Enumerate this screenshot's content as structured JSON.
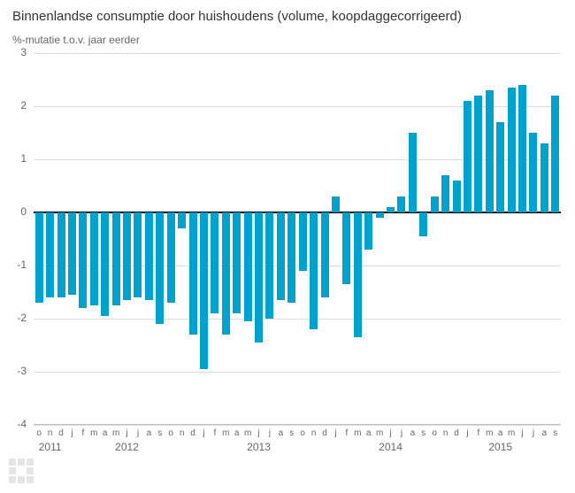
{
  "chart": {
    "type": "bar",
    "title": "Binnenlandse consumptie door huishoudens (volume, koopdaggecorrigeerd)",
    "subtitle": "%-mutatie t.o.v. jaar eerder",
    "title_fontsize": 15,
    "subtitle_fontsize": 12,
    "title_color": "#333333",
    "subtitle_color": "#666666",
    "background_color": "#ffffff",
    "bar_color": "#00a1cd",
    "grid_color": "#dcdcdc",
    "baseline_color": "#000000",
    "axis_border_color": "#c0c0c0",
    "tick_label_color": "#666666",
    "ylim": [
      -4,
      3
    ],
    "ytick_step": 1,
    "yticks": [
      -4,
      -3,
      -2,
      -1,
      0,
      1,
      2,
      3
    ],
    "bar_width_ratio": 0.72,
    "month_labels": [
      "o",
      "n",
      "d",
      "j",
      "f",
      "m",
      "a",
      "m",
      "j",
      "j",
      "a",
      "s",
      "o",
      "n",
      "d",
      "j",
      "f",
      "m",
      "a",
      "m",
      "j",
      "j",
      "a",
      "s",
      "o",
      "n",
      "d",
      "j",
      "f",
      "m",
      "a",
      "m",
      "j",
      "j",
      "a",
      "s",
      "o",
      "n",
      "d",
      "j",
      "f",
      "m",
      "a",
      "m",
      "j",
      "j",
      "a",
      "s"
    ],
    "year_labels": [
      {
        "label": "2011",
        "at_index": 1
      },
      {
        "label": "2012",
        "at_index": 8
      },
      {
        "label": "2013",
        "at_index": 20
      },
      {
        "label": "2014",
        "at_index": 32
      },
      {
        "label": "2015",
        "at_index": 42
      }
    ],
    "values": [
      -1.7,
      -1.6,
      -1.6,
      -1.55,
      -1.8,
      -1.75,
      -1.95,
      -1.75,
      -1.65,
      -1.6,
      -1.65,
      -2.1,
      -1.7,
      -0.3,
      -2.3,
      -2.95,
      -1.9,
      -2.3,
      -1.9,
      -2.05,
      -2.45,
      -2.0,
      -1.65,
      -1.7,
      -1.1,
      -2.2,
      -1.6,
      0.3,
      -1.35,
      -2.35,
      -0.7,
      -0.1,
      0.1,
      0.3,
      1.5,
      -0.45,
      0.3,
      0.7,
      0.6,
      2.1,
      2.2,
      2.3,
      1.7,
      2.35,
      2.4,
      1.5,
      1.3,
      2.2
    ]
  },
  "logo": {
    "name": "cbs-logo",
    "color": "#999999"
  }
}
